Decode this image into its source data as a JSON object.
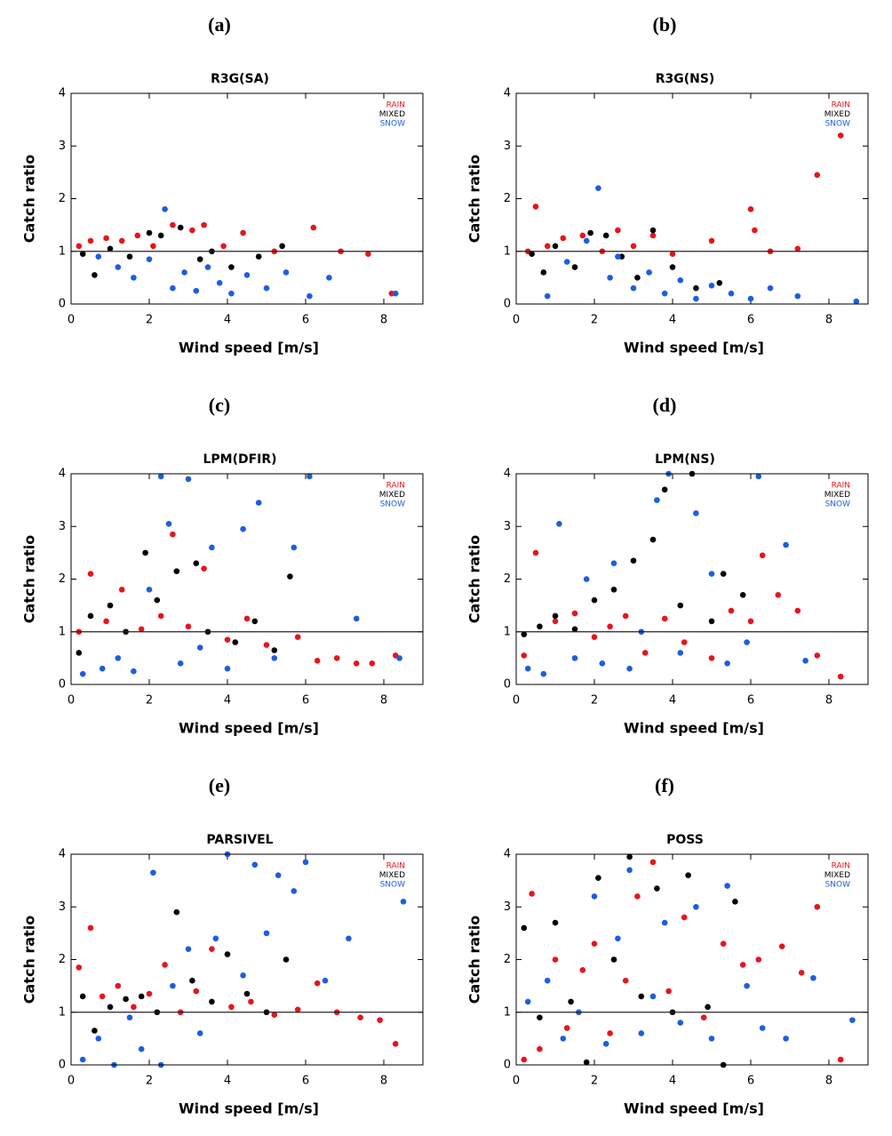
{
  "chart_data": [
    {
      "type": "scatter",
      "panel": "(a)",
      "title": "R3G(SA)",
      "xlabel": "Wind speed [m/s]",
      "ylabel": "Catch ratio",
      "xlim": [
        0,
        9
      ],
      "ylim": [
        0,
        4
      ],
      "xticks": [
        0,
        2,
        4,
        6,
        8
      ],
      "yticks": [
        0,
        1,
        2,
        3,
        4
      ],
      "reference_line": 1,
      "legend": "upper right",
      "series": [
        {
          "name": "RAIN",
          "color": "#e8141c",
          "x": [
            0.2,
            0.5,
            0.9,
            1.3,
            1.7,
            2.1,
            2.6,
            3.1,
            3.4,
            3.9,
            4.4,
            5.2,
            6.2,
            6.9,
            7.6,
            8.2
          ],
          "values": [
            1.1,
            1.2,
            1.25,
            1.2,
            1.3,
            1.1,
            1.5,
            1.4,
            1.5,
            1.1,
            1.35,
            1.0,
            1.45,
            1.0,
            0.95,
            0.2
          ]
        },
        {
          "name": "MIXED",
          "color": "#000000",
          "x": [
            0.3,
            0.6,
            1.0,
            1.5,
            2.0,
            2.3,
            2.8,
            3.3,
            3.6,
            4.1,
            4.8,
            5.4
          ],
          "values": [
            0.95,
            0.55,
            1.05,
            0.9,
            1.35,
            1.3,
            1.45,
            0.85,
            1.0,
            0.7,
            0.9,
            1.1
          ]
        },
        {
          "name": "SNOW",
          "color": "#1c5ee0",
          "x": [
            0.7,
            1.2,
            1.6,
            2.0,
            2.4,
            2.6,
            2.9,
            3.2,
            3.5,
            3.8,
            4.1,
            4.5,
            5.0,
            5.5,
            6.1,
            6.6,
            8.3
          ],
          "values": [
            0.9,
            0.7,
            0.5,
            0.85,
            1.8,
            0.3,
            0.6,
            0.25,
            0.7,
            0.4,
            0.2,
            0.55,
            0.3,
            0.6,
            0.15,
            0.5,
            0.2
          ]
        }
      ]
    },
    {
      "type": "scatter",
      "panel": "(b)",
      "title": "R3G(NS)",
      "xlabel": "Wind speed [m/s]",
      "ylabel": "Catch ratio",
      "xlim": [
        0,
        9
      ],
      "ylim": [
        0,
        4
      ],
      "xticks": [
        0,
        2,
        4,
        6,
        8
      ],
      "yticks": [
        0,
        1,
        2,
        3,
        4
      ],
      "reference_line": 1,
      "legend": "upper right",
      "series": [
        {
          "name": "RAIN",
          "color": "#e8141c",
          "x": [
            0.3,
            0.5,
            0.8,
            1.2,
            1.7,
            2.2,
            2.6,
            3.0,
            3.5,
            4.0,
            5.0,
            6.0,
            6.1,
            6.5,
            7.2,
            7.7,
            8.3
          ],
          "values": [
            1.0,
            1.85,
            1.1,
            1.25,
            1.3,
            1.0,
            1.4,
            1.1,
            1.3,
            0.95,
            1.2,
            1.8,
            1.4,
            1.0,
            1.05,
            2.45,
            3.2
          ]
        },
        {
          "name": "MIXED",
          "color": "#000000",
          "x": [
            0.4,
            0.7,
            1.0,
            1.5,
            1.9,
            2.3,
            2.7,
            3.1,
            3.5,
            4.0,
            4.6,
            5.2
          ],
          "values": [
            0.95,
            0.6,
            1.1,
            0.7,
            1.35,
            1.3,
            0.9,
            0.5,
            1.4,
            0.7,
            0.3,
            0.4
          ]
        },
        {
          "name": "SNOW",
          "color": "#1c5ee0",
          "x": [
            0.8,
            1.3,
            1.8,
            2.1,
            2.4,
            2.6,
            3.0,
            3.4,
            3.8,
            4.2,
            4.6,
            5.0,
            5.5,
            6.0,
            6.5,
            7.2,
            8.7
          ],
          "values": [
            0.15,
            0.8,
            1.2,
            2.2,
            0.5,
            0.9,
            0.3,
            0.6,
            0.2,
            0.45,
            0.1,
            0.35,
            0.2,
            0.1,
            0.3,
            0.15,
            0.05
          ]
        }
      ]
    },
    {
      "type": "scatter",
      "panel": "(c)",
      "title": "LPM(DFIR)",
      "xlabel": "Wind speed [m/s]",
      "ylabel": "Catch ratio",
      "xlim": [
        0,
        9
      ],
      "ylim": [
        0,
        4
      ],
      "xticks": [
        0,
        2,
        4,
        6,
        8
      ],
      "yticks": [
        0,
        1,
        2,
        3,
        4
      ],
      "reference_line": 1,
      "legend": "upper right",
      "series": [
        {
          "name": "RAIN",
          "color": "#e8141c",
          "x": [
            0.2,
            0.5,
            0.9,
            1.3,
            1.8,
            2.3,
            2.6,
            3.0,
            3.4,
            4.0,
            4.5,
            5.0,
            5.8,
            6.3,
            6.8,
            7.3,
            7.7,
            8.3
          ],
          "values": [
            1.0,
            2.1,
            1.2,
            1.8,
            1.05,
            1.3,
            2.85,
            1.1,
            2.2,
            0.85,
            1.25,
            0.75,
            0.9,
            0.45,
            0.5,
            0.4,
            0.4,
            0.55
          ]
        },
        {
          "name": "MIXED",
          "color": "#000000",
          "x": [
            0.2,
            0.5,
            1.0,
            1.4,
            1.9,
            2.2,
            2.7,
            3.2,
            3.5,
            4.2,
            4.7,
            5.2,
            5.6
          ],
          "values": [
            0.6,
            1.3,
            1.5,
            1.0,
            2.5,
            1.6,
            2.15,
            2.3,
            1.0,
            0.8,
            1.2,
            0.65,
            2.05
          ]
        },
        {
          "name": "SNOW",
          "color": "#1c5ee0",
          "x": [
            0.3,
            0.8,
            1.2,
            1.6,
            2.0,
            2.3,
            2.5,
            2.8,
            3.0,
            3.3,
            3.6,
            4.0,
            4.4,
            4.8,
            5.2,
            5.7,
            6.1,
            7.3,
            8.4
          ],
          "values": [
            0.2,
            0.3,
            0.5,
            0.25,
            1.8,
            3.95,
            3.05,
            0.4,
            3.9,
            0.7,
            2.6,
            0.3,
            2.95,
            3.45,
            0.5,
            2.6,
            3.95,
            1.25,
            0.5
          ]
        }
      ]
    },
    {
      "type": "scatter",
      "panel": "(d)",
      "title": "LPM(NS)",
      "xlabel": "Wind speed [m/s]",
      "ylabel": "Catch ratio",
      "xlim": [
        0,
        9
      ],
      "ylim": [
        0,
        4
      ],
      "xticks": [
        0,
        2,
        4,
        6,
        8
      ],
      "yticks": [
        0,
        1,
        2,
        3,
        4
      ],
      "reference_line": 1,
      "legend": "upper right",
      "series": [
        {
          "name": "RAIN",
          "color": "#e8141c",
          "x": [
            0.2,
            0.5,
            1.0,
            1.5,
            2.0,
            2.4,
            2.8,
            3.3,
            3.8,
            4.3,
            5.0,
            5.5,
            6.0,
            6.3,
            6.7,
            7.2,
            7.7,
            8.3
          ],
          "values": [
            0.55,
            2.5,
            1.2,
            1.35,
            0.9,
            1.1,
            1.3,
            0.6,
            1.25,
            0.8,
            0.5,
            1.4,
            1.2,
            2.45,
            1.7,
            1.4,
            0.55,
            0.15
          ]
        },
        {
          "name": "MIXED",
          "color": "#000000",
          "x": [
            0.2,
            0.6,
            1.0,
            1.5,
            2.0,
            2.5,
            3.0,
            3.5,
            3.8,
            4.2,
            4.5,
            5.0,
            5.3,
            5.8
          ],
          "values": [
            0.95,
            1.1,
            1.3,
            1.05,
            1.6,
            1.8,
            2.35,
            2.75,
            3.7,
            1.5,
            4.0,
            1.2,
            2.1,
            1.7
          ]
        },
        {
          "name": "SNOW",
          "color": "#1c5ee0",
          "x": [
            0.3,
            0.7,
            1.1,
            1.5,
            1.8,
            2.2,
            2.5,
            2.9,
            3.2,
            3.6,
            3.9,
            4.2,
            4.6,
            5.0,
            5.4,
            5.9,
            6.2,
            6.9,
            7.4
          ],
          "values": [
            0.3,
            0.2,
            3.05,
            0.5,
            2.0,
            0.4,
            2.3,
            0.3,
            1.0,
            3.5,
            4.0,
            0.6,
            3.25,
            2.1,
            0.4,
            0.8,
            3.95,
            2.65,
            0.45
          ]
        }
      ]
    },
    {
      "type": "scatter",
      "panel": "(e)",
      "title": "PARSIVEL",
      "xlabel": "Wind speed [m/s]",
      "ylabel": "Catch ratio",
      "xlim": [
        0,
        9
      ],
      "ylim": [
        0,
        4
      ],
      "xticks": [
        0,
        2,
        4,
        6,
        8
      ],
      "yticks": [
        0,
        1,
        2,
        3,
        4
      ],
      "reference_line": 1,
      "legend": "upper right",
      "series": [
        {
          "name": "RAIN",
          "color": "#e8141c",
          "x": [
            0.2,
            0.5,
            0.8,
            1.2,
            1.6,
            2.0,
            2.4,
            2.8,
            3.2,
            3.6,
            4.1,
            4.6,
            5.2,
            5.8,
            6.3,
            6.8,
            7.4,
            7.9,
            8.3
          ],
          "values": [
            1.85,
            2.6,
            1.3,
            1.5,
            1.1,
            1.35,
            1.9,
            1.0,
            1.4,
            2.2,
            1.1,
            1.2,
            0.95,
            1.05,
            1.55,
            1.0,
            0.9,
            0.85,
            0.4
          ]
        },
        {
          "name": "MIXED",
          "color": "#000000",
          "x": [
            0.3,
            0.6,
            1.0,
            1.4,
            1.8,
            2.2,
            2.7,
            3.1,
            3.6,
            4.0,
            4.5,
            5.0,
            5.5
          ],
          "values": [
            1.3,
            0.65,
            1.1,
            1.25,
            1.3,
            1.0,
            2.9,
            1.6,
            1.2,
            2.1,
            1.35,
            1.0,
            2.0
          ]
        },
        {
          "name": "SNOW",
          "color": "#1c5ee0",
          "x": [
            0.3,
            0.7,
            1.1,
            1.5,
            1.8,
            2.1,
            2.3,
            2.6,
            3.0,
            3.3,
            3.7,
            4.0,
            4.4,
            4.7,
            5.0,
            5.3,
            5.7,
            6.0,
            6.5,
            7.1,
            8.5
          ],
          "values": [
            0.1,
            0.5,
            0.0,
            0.9,
            0.3,
            3.65,
            0.0,
            1.5,
            2.2,
            0.6,
            2.4,
            4.0,
            1.7,
            3.8,
            2.5,
            3.6,
            3.3,
            3.85,
            1.6,
            2.4,
            3.1
          ]
        }
      ]
    },
    {
      "type": "scatter",
      "panel": "(f)",
      "title": "POSS",
      "xlabel": "Wind speed [m/s]",
      "ylabel": "Catch ratio",
      "xlim": [
        0,
        9
      ],
      "ylim": [
        0,
        4
      ],
      "xticks": [
        0,
        2,
        4,
        6,
        8
      ],
      "yticks": [
        0,
        1,
        2,
        3,
        4
      ],
      "reference_line": 1,
      "legend": "upper right",
      "series": [
        {
          "name": "RAIN",
          "color": "#e8141c",
          "x": [
            0.2,
            0.4,
            0.6,
            1.0,
            1.3,
            1.7,
            2.0,
            2.4,
            2.8,
            3.1,
            3.5,
            3.9,
            4.3,
            4.8,
            5.3,
            5.8,
            6.2,
            6.8,
            7.3,
            7.7,
            8.3
          ],
          "values": [
            0.1,
            3.25,
            0.3,
            2.0,
            0.7,
            1.8,
            2.3,
            0.6,
            1.6,
            3.2,
            3.85,
            1.4,
            2.8,
            0.9,
            2.3,
            1.9,
            2.0,
            2.25,
            1.75,
            3.0,
            0.1
          ]
        },
        {
          "name": "MIXED",
          "color": "#000000",
          "x": [
            0.2,
            0.6,
            1.0,
            1.4,
            1.8,
            2.1,
            2.5,
            2.9,
            3.2,
            3.6,
            4.0,
            4.4,
            4.9,
            5.3,
            5.6
          ],
          "values": [
            2.6,
            0.9,
            2.7,
            1.2,
            0.05,
            3.55,
            2.0,
            3.95,
            1.3,
            3.35,
            1.0,
            3.6,
            1.1,
            0.0,
            3.1
          ]
        },
        {
          "name": "SNOW",
          "color": "#1c5ee0",
          "x": [
            0.3,
            0.8,
            1.2,
            1.6,
            2.0,
            2.3,
            2.6,
            2.9,
            3.2,
            3.5,
            3.8,
            4.2,
            4.6,
            5.0,
            5.4,
            5.9,
            6.3,
            6.9,
            7.6,
            8.6
          ],
          "values": [
            1.2,
            1.6,
            0.5,
            1.0,
            3.2,
            0.4,
            2.4,
            3.7,
            0.6,
            1.3,
            2.7,
            0.8,
            3.0,
            0.5,
            3.4,
            1.5,
            0.7,
            0.5,
            1.65,
            0.85
          ]
        }
      ]
    }
  ]
}
